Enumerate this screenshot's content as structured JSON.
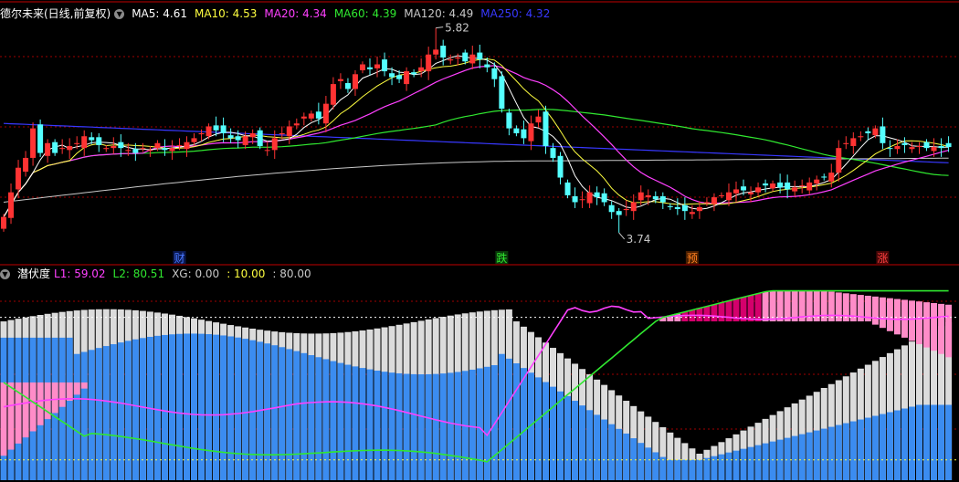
{
  "price_panel": {
    "title": "德尔未来(日线,前复权)",
    "ma": [
      {
        "label": "MA5",
        "value": "4.61",
        "color": "#ffffff"
      },
      {
        "label": "MA10",
        "value": "4.53",
        "color": "#ffff40"
      },
      {
        "label": "MA20",
        "value": "4.34",
        "color": "#ff40ff"
      },
      {
        "label": "MA60",
        "value": "4.39",
        "color": "#30e830"
      },
      {
        "label": "MA120",
        "value": "4.49",
        "color": "#c8c8c8"
      },
      {
        "label": "MA250",
        "value": "4.32",
        "color": "#3838ff"
      }
    ],
    "high_label": "5.82",
    "low_label": "3.74",
    "markers": [
      {
        "text": "财",
        "color": "#4a78ff",
        "bg": "#0a1850",
        "index": 24
      },
      {
        "text": "跌",
        "color": "#30e830",
        "bg": "#0a3a0a",
        "index": 68
      },
      {
        "text": "预",
        "color": "#ff8020",
        "bg": "#4a1e00",
        "index": 94
      },
      {
        "text": "涨",
        "color": "#ff4040",
        "bg": "#4a0808",
        "index": 120
      }
    ]
  },
  "indicator_panel": {
    "name": "潜伏度",
    "params": [
      {
        "label": "L1:",
        "value": "59.02",
        "color": "#ff40ff"
      },
      {
        "label": "L2:",
        "value": "80.51",
        "color": "#30e830"
      },
      {
        "label": "XG:",
        "value": "0.00",
        "color": "#c8c8c8"
      },
      {
        "label": ":",
        "value": "10.00",
        "color": "#ffff40"
      },
      {
        "label": ":",
        "value": "80.00",
        "color": "#c8c8c8"
      }
    ]
  },
  "colors": {
    "up": "#ff3333",
    "down": "#54ffff",
    "grid": "#a00000",
    "bar_blue": "#3b8cf0",
    "bar_grey": "#dcdcdc",
    "bar_pink": "#ff8cc8",
    "bar_magenta": "#d4006c"
  },
  "chart_data": [
    {
      "type": "candlestick",
      "title": "德尔未来(日线,前复权)",
      "ylim": [
        3.6,
        5.9
      ],
      "count": 130,
      "close": [
        3.9,
        4.15,
        4.4,
        4.5,
        4.8,
        4.55,
        4.65,
        4.55,
        4.6,
        4.62,
        4.65,
        4.72,
        4.68,
        4.63,
        4.6,
        4.62,
        4.6,
        4.58,
        4.55,
        4.6,
        4.58,
        4.65,
        4.58,
        4.6,
        4.63,
        4.66,
        4.7,
        4.75,
        4.82,
        4.78,
        4.75,
        4.7,
        4.68,
        4.72,
        4.75,
        4.62,
        4.58,
        4.7,
        4.75,
        4.82,
        4.85,
        4.92,
        4.95,
        4.9,
        5.05,
        5.25,
        5.3,
        5.2,
        5.35,
        5.45,
        5.4,
        5.45,
        5.38,
        5.32,
        5.3,
        5.38,
        5.35,
        5.42,
        5.55,
        5.6,
        5.52,
        5.5,
        5.52,
        5.48,
        5.55,
        5.5,
        5.42,
        5.3,
        5.0,
        4.8,
        4.75,
        4.7,
        4.85,
        4.92,
        4.62,
        4.5,
        4.3,
        4.12,
        4.05,
        4.08,
        4.15,
        4.1,
        4.05,
        3.95,
        3.92,
        3.98,
        4.05,
        4.15,
        4.12,
        4.08,
        4.05,
        4.0,
        3.98,
        3.96,
        3.95,
        4.0,
        4.05,
        4.1,
        4.12,
        4.15,
        4.18,
        4.17,
        4.15,
        4.2,
        4.22,
        4.24,
        4.2,
        4.18,
        4.2,
        4.22,
        4.25,
        4.28,
        4.3,
        4.35,
        4.6,
        4.65,
        4.7,
        4.72,
        4.75,
        4.8,
        4.65,
        4.6,
        4.62,
        4.63,
        4.61,
        4.62,
        4.6,
        4.61,
        4.6,
        4.61
      ],
      "low_value": 3.74,
      "high_value": 5.82
    },
    {
      "type": "mixed_bar_line",
      "title": "潜伏度",
      "ylim": [
        0,
        100
      ],
      "reference_lines": [
        10,
        80
      ],
      "L1_last": 59.02,
      "L2_last": 80.51
    }
  ]
}
